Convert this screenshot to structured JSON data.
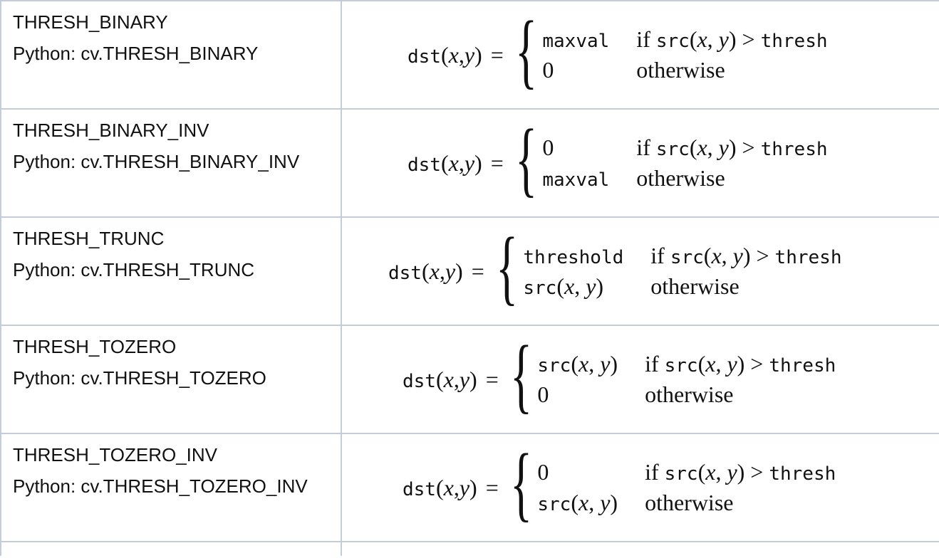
{
  "rows": [
    {
      "name": "THRESH_BINARY",
      "python": "Python: cv.THRESH_BINARY",
      "formula_left": 570,
      "case1_value": "maxval",
      "case1_mono": true,
      "case2_value": "0",
      "case2_mono": false
    },
    {
      "name": "THRESH_BINARY_INV",
      "python": "Python: cv.THRESH_BINARY_INV",
      "formula_left": 570,
      "case1_value": "0",
      "case1_mono": false,
      "case2_value": "maxval",
      "case2_mono": true
    },
    {
      "name": "THRESH_TRUNC",
      "python": "Python: cv.THRESH_TRUNC",
      "formula_left": 543,
      "case1_value": "threshold",
      "case1_mono": true,
      "case2_value": "src(x, y)",
      "case2_mono": "src"
    },
    {
      "name": "THRESH_TOZERO",
      "python": "Python: cv.THRESH_TOZERO",
      "formula_left": 563,
      "case1_value": "src(x, y)",
      "case1_mono": "src",
      "case2_value": "0",
      "case2_mono": false
    },
    {
      "name": "THRESH_TOZERO_INV",
      "python": "Python: cv.THRESH_TOZERO_INV",
      "formula_left": 563,
      "case1_value": "0",
      "case1_mono": false,
      "case2_value": "src(x, y)",
      "case2_mono": "src"
    }
  ],
  "formula": {
    "lhs_func": "dst",
    "lhs_open": "(",
    "lhs_x": "x",
    "lhs_comma": ", ",
    "lhs_y": "y",
    "lhs_close": ")",
    "equals": "=",
    "cond_if": "if",
    "cond_func": "src",
    "cond_args_open": "(",
    "cond_x": "x",
    "cond_comma": ", ",
    "cond_y": "y",
    "cond_args_close": ")",
    "cond_gt": ">",
    "cond_rhs": "thresh",
    "otherwise": "otherwise"
  }
}
